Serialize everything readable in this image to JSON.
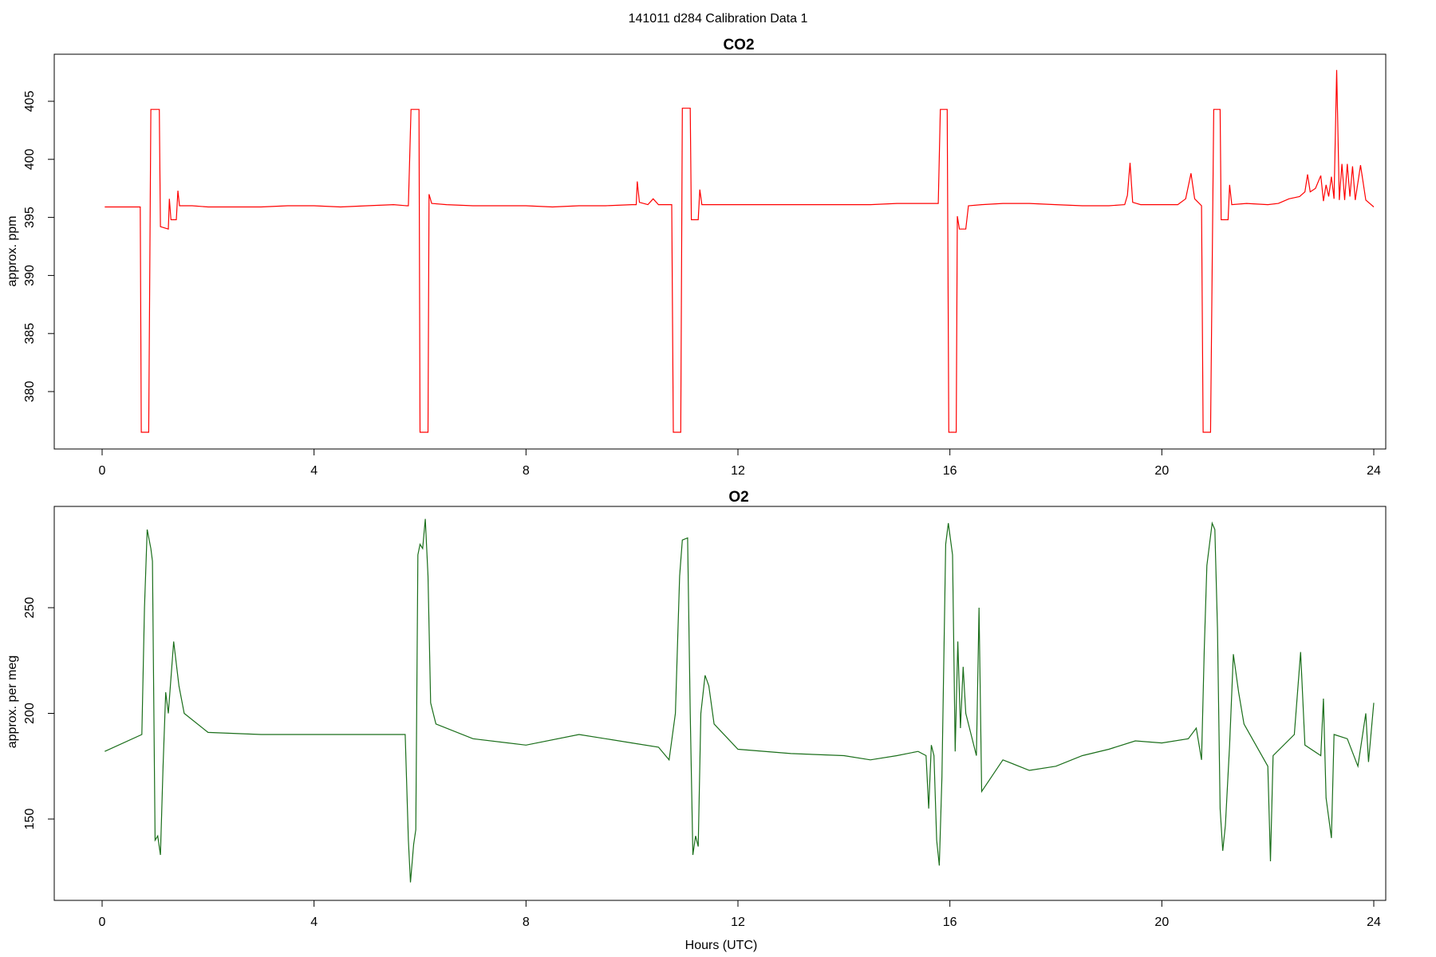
{
  "figure": {
    "title": "141011   d284   Calibration Data 1"
  },
  "chart_data": [
    {
      "type": "line",
      "title": "CO2",
      "xlabel": "",
      "ylabel": "approx. ppm",
      "xlim": [
        0,
        24
      ],
      "ylim": [
        375,
        408
      ],
      "xticks": [
        0,
        4,
        8,
        12,
        16,
        20,
        24
      ],
      "yticks": [
        380,
        385,
        390,
        395,
        400,
        405
      ],
      "grid": false,
      "color": "#ff0000",
      "series": [
        {
          "points": [
            [
              0.05,
              395.9
            ],
            [
              0.35,
              395.9
            ],
            [
              0.65,
              395.9
            ],
            [
              0.72,
              395.9
            ],
            [
              0.74,
              376.5
            ],
            [
              0.88,
              376.5
            ],
            [
              0.92,
              404.3
            ],
            [
              1.0,
              404.3
            ],
            [
              1.08,
              404.3
            ],
            [
              1.1,
              394.2
            ],
            [
              1.25,
              394.0
            ],
            [
              1.27,
              396.6
            ],
            [
              1.3,
              394.8
            ],
            [
              1.4,
              394.8
            ],
            [
              1.43,
              397.3
            ],
            [
              1.46,
              396.0
            ],
            [
              1.7,
              396.0
            ],
            [
              2.0,
              395.9
            ],
            [
              2.5,
              395.9
            ],
            [
              3.0,
              395.9
            ],
            [
              3.5,
              396.0
            ],
            [
              4.0,
              396.0
            ],
            [
              4.5,
              395.9
            ],
            [
              5.0,
              396.0
            ],
            [
              5.5,
              396.1
            ],
            [
              5.75,
              396.0
            ],
            [
              5.78,
              396.0
            ],
            [
              5.83,
              404.3
            ],
            [
              5.98,
              404.3
            ],
            [
              6.0,
              376.5
            ],
            [
              6.15,
              376.5
            ],
            [
              6.17,
              397.0
            ],
            [
              6.22,
              396.2
            ],
            [
              6.5,
              396.1
            ],
            [
              7.0,
              396.0
            ],
            [
              7.5,
              396.0
            ],
            [
              8.0,
              396.0
            ],
            [
              8.5,
              395.9
            ],
            [
              9.0,
              396.0
            ],
            [
              9.5,
              396.0
            ],
            [
              10.0,
              396.1
            ],
            [
              10.08,
              396.1
            ],
            [
              10.1,
              398.1
            ],
            [
              10.14,
              396.3
            ],
            [
              10.3,
              396.1
            ],
            [
              10.4,
              396.6
            ],
            [
              10.5,
              396.1
            ],
            [
              10.75,
              396.1
            ],
            [
              10.78,
              376.5
            ],
            [
              10.92,
              376.5
            ],
            [
              10.95,
              404.4
            ],
            [
              11.1,
              404.4
            ],
            [
              11.12,
              394.8
            ],
            [
              11.25,
              394.8
            ],
            [
              11.28,
              397.4
            ],
            [
              11.32,
              396.1
            ],
            [
              11.6,
              396.1
            ],
            [
              12.0,
              396.1
            ],
            [
              12.5,
              396.1
            ],
            [
              13.0,
              396.1
            ],
            [
              13.5,
              396.1
            ],
            [
              14.0,
              396.1
            ],
            [
              14.5,
              396.1
            ],
            [
              15.0,
              396.2
            ],
            [
              15.5,
              396.2
            ],
            [
              15.78,
              396.2
            ],
            [
              15.82,
              404.3
            ],
            [
              15.95,
              404.3
            ],
            [
              15.98,
              376.5
            ],
            [
              16.12,
              376.5
            ],
            [
              16.14,
              395.1
            ],
            [
              16.18,
              394.0
            ],
            [
              16.3,
              394.0
            ],
            [
              16.35,
              396.0
            ],
            [
              16.6,
              396.1
            ],
            [
              17.0,
              396.2
            ],
            [
              17.5,
              396.2
            ],
            [
              18.0,
              396.1
            ],
            [
              18.5,
              396.0
            ],
            [
              19.0,
              396.0
            ],
            [
              19.3,
              396.1
            ],
            [
              19.35,
              396.9
            ],
            [
              19.4,
              399.7
            ],
            [
              19.45,
              396.3
            ],
            [
              19.6,
              396.1
            ],
            [
              20.0,
              396.1
            ],
            [
              20.3,
              396.1
            ],
            [
              20.45,
              396.6
            ],
            [
              20.55,
              398.8
            ],
            [
              20.62,
              396.6
            ],
            [
              20.75,
              396.0
            ],
            [
              20.78,
              376.5
            ],
            [
              20.92,
              376.5
            ],
            [
              20.98,
              404.3
            ],
            [
              21.1,
              404.3
            ],
            [
              21.12,
              394.8
            ],
            [
              21.25,
              394.8
            ],
            [
              21.28,
              397.8
            ],
            [
              21.32,
              396.1
            ],
            [
              21.6,
              396.2
            ],
            [
              22.0,
              396.1
            ],
            [
              22.2,
              396.2
            ],
            [
              22.4,
              396.6
            ],
            [
              22.6,
              396.8
            ],
            [
              22.7,
              397.2
            ],
            [
              22.75,
              398.7
            ],
            [
              22.8,
              397.2
            ],
            [
              22.9,
              397.5
            ],
            [
              23.0,
              398.6
            ],
            [
              23.05,
              396.4
            ],
            [
              23.1,
              397.8
            ],
            [
              23.15,
              396.8
            ],
            [
              23.2,
              398.5
            ],
            [
              23.25,
              396.6
            ],
            [
              23.3,
              407.7
            ],
            [
              23.35,
              396.5
            ],
            [
              23.4,
              399.6
            ],
            [
              23.45,
              396.5
            ],
            [
              23.5,
              399.6
            ],
            [
              23.55,
              396.8
            ],
            [
              23.6,
              399.4
            ],
            [
              23.65,
              396.5
            ],
            [
              23.75,
              399.5
            ],
            [
              23.85,
              396.5
            ],
            [
              24.0,
              395.9
            ]
          ]
        }
      ]
    },
    {
      "type": "line",
      "title": "O2",
      "xlabel": "Hours (UTC)",
      "ylabel": "approx. per meg",
      "xlim": [
        0,
        24
      ],
      "ylim": [
        113,
        295
      ],
      "xticks": [
        0,
        4,
        8,
        12,
        16,
        20,
        24
      ],
      "yticks": [
        150,
        200,
        250
      ],
      "grid": false,
      "color": "#1a6e1a",
      "series": [
        {
          "points": [
            [
              0.05,
              182
            ],
            [
              0.75,
              190
            ],
            [
              0.8,
              250
            ],
            [
              0.85,
              287
            ],
            [
              0.92,
              278
            ],
            [
              0.95,
              272
            ],
            [
              1.0,
              140
            ],
            [
              1.05,
              142
            ],
            [
              1.1,
              133
            ],
            [
              1.15,
              175
            ],
            [
              1.2,
              210
            ],
            [
              1.25,
              200
            ],
            [
              1.35,
              234
            ],
            [
              1.45,
              213
            ],
            [
              1.55,
              200
            ],
            [
              2.0,
              191
            ],
            [
              3.0,
              190
            ],
            [
              4.0,
              190
            ],
            [
              5.0,
              190
            ],
            [
              5.6,
              190
            ],
            [
              5.72,
              190
            ],
            [
              5.78,
              140
            ],
            [
              5.82,
              120
            ],
            [
              5.88,
              138
            ],
            [
              5.92,
              145
            ],
            [
              5.96,
              275
            ],
            [
              6.0,
              280
            ],
            [
              6.05,
              278
            ],
            [
              6.1,
              292
            ],
            [
              6.15,
              265
            ],
            [
              6.2,
              205
            ],
            [
              6.3,
              195
            ],
            [
              7.0,
              188
            ],
            [
              8.0,
              185
            ],
            [
              9.0,
              190
            ],
            [
              10.0,
              186
            ],
            [
              10.5,
              184
            ],
            [
              10.7,
              178
            ],
            [
              10.82,
              200
            ],
            [
              10.9,
              265
            ],
            [
              10.95,
              282
            ],
            [
              11.05,
              283
            ],
            [
              11.1,
              200
            ],
            [
              11.15,
              133
            ],
            [
              11.2,
              142
            ],
            [
              11.25,
              137
            ],
            [
              11.3,
              200
            ],
            [
              11.38,
              218
            ],
            [
              11.45,
              213
            ],
            [
              11.55,
              195
            ],
            [
              12.0,
              183
            ],
            [
              13.0,
              181
            ],
            [
              14.0,
              180
            ],
            [
              14.5,
              178
            ],
            [
              15.0,
              180
            ],
            [
              15.4,
              182
            ],
            [
              15.55,
              180
            ],
            [
              15.6,
              155
            ],
            [
              15.65,
              185
            ],
            [
              15.7,
              180
            ],
            [
              15.75,
              140
            ],
            [
              15.8,
              128
            ],
            [
              15.85,
              170
            ],
            [
              15.92,
              280
            ],
            [
              15.97,
              290
            ],
            [
              16.05,
              275
            ],
            [
              16.1,
              182
            ],
            [
              16.15,
              234
            ],
            [
              16.2,
              193
            ],
            [
              16.25,
              222
            ],
            [
              16.3,
              200
            ],
            [
              16.5,
              180
            ],
            [
              16.55,
              250
            ],
            [
              16.6,
              163
            ],
            [
              17.0,
              178
            ],
            [
              17.5,
              173
            ],
            [
              18.0,
              175
            ],
            [
              18.5,
              180
            ],
            [
              19.0,
              183
            ],
            [
              19.5,
              187
            ],
            [
              20.0,
              186
            ],
            [
              20.5,
              188
            ],
            [
              20.65,
              193
            ],
            [
              20.75,
              178
            ],
            [
              20.8,
              230
            ],
            [
              20.85,
              270
            ],
            [
              20.95,
              290
            ],
            [
              21.0,
              287
            ],
            [
              21.05,
              240
            ],
            [
              21.1,
              155
            ],
            [
              21.15,
              135
            ],
            [
              21.2,
              147
            ],
            [
              21.28,
              185
            ],
            [
              21.35,
              228
            ],
            [
              21.45,
              210
            ],
            [
              21.55,
              195
            ],
            [
              22.0,
              175
            ],
            [
              22.05,
              130
            ],
            [
              22.1,
              180
            ],
            [
              22.5,
              190
            ],
            [
              22.62,
              229
            ],
            [
              22.7,
              185
            ],
            [
              23.0,
              180
            ],
            [
              23.05,
              207
            ],
            [
              23.1,
              160
            ],
            [
              23.2,
              141
            ],
            [
              23.25,
              190
            ],
            [
              23.5,
              188
            ],
            [
              23.7,
              175
            ],
            [
              23.85,
              200
            ],
            [
              23.9,
              177
            ],
            [
              24.0,
              205
            ]
          ]
        }
      ]
    }
  ]
}
